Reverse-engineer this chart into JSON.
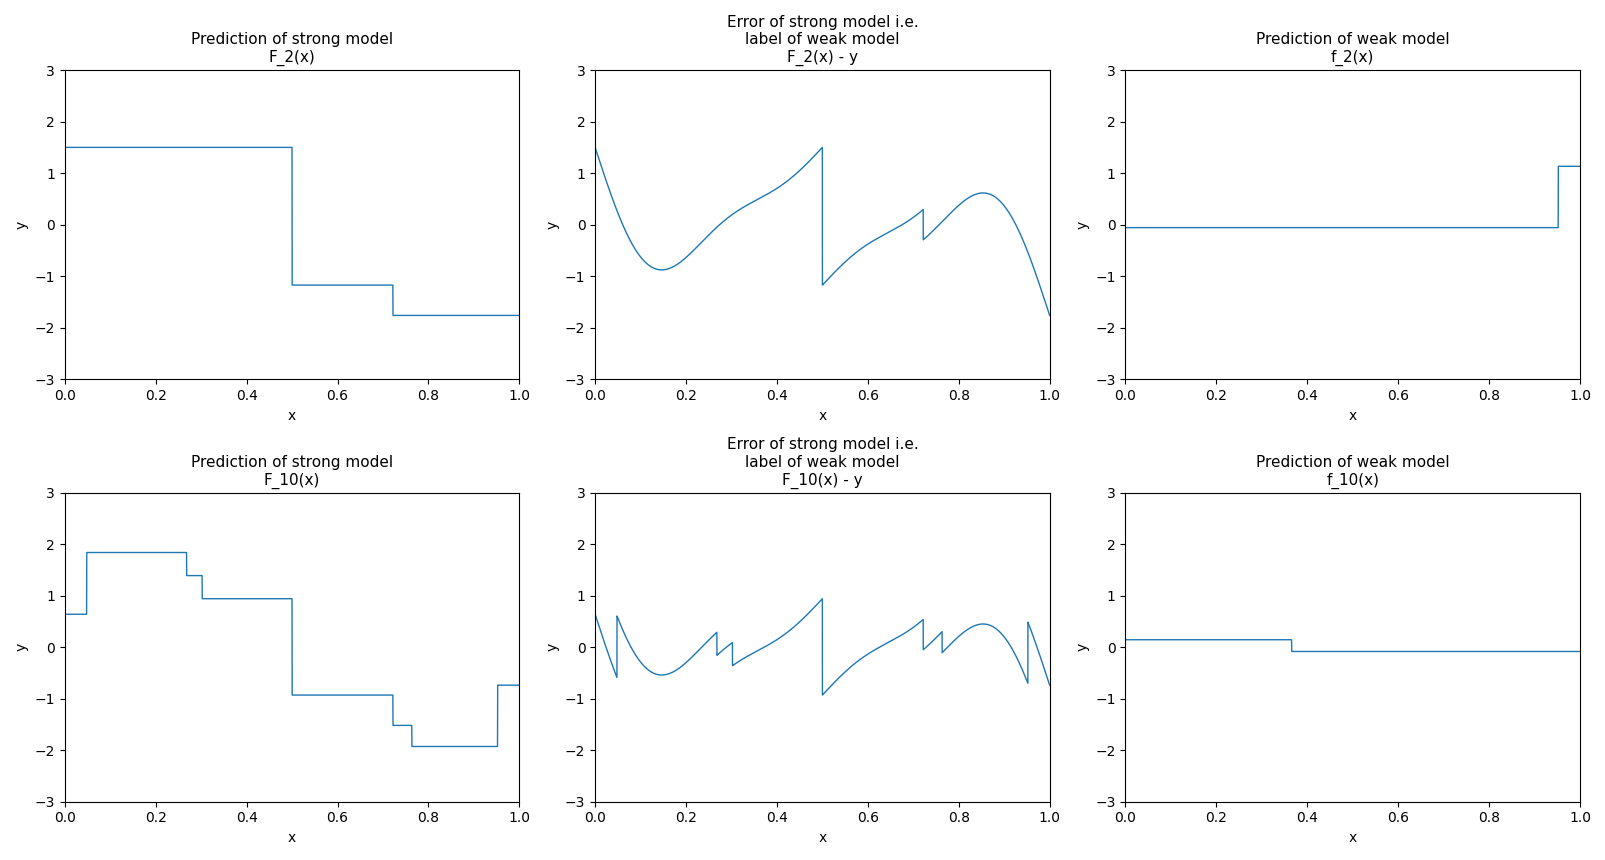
{
  "line_color": "#1f77b4",
  "background_color": "#ffffff",
  "ylim": [
    -3,
    3
  ],
  "xlim": [
    0,
    1
  ],
  "xlabel": "x",
  "ylabel": "y",
  "titles_row1": [
    "Prediction of strong model\nF_2(x)",
    "Error of strong model i.e.\nlabel of weak model\nF_2(x) - y",
    "Prediction of weak model\nf_2(x)"
  ],
  "titles_row2": [
    "Prediction of strong model\nF_10(x)",
    "Error of strong model i.e.\nlabel of weak model\nF_10(x) - y",
    "Prediction of weak model\nf_10(x)"
  ],
  "figsize": [
    16.06,
    8.6
  ],
  "dpi": 100,
  "seed": 0
}
